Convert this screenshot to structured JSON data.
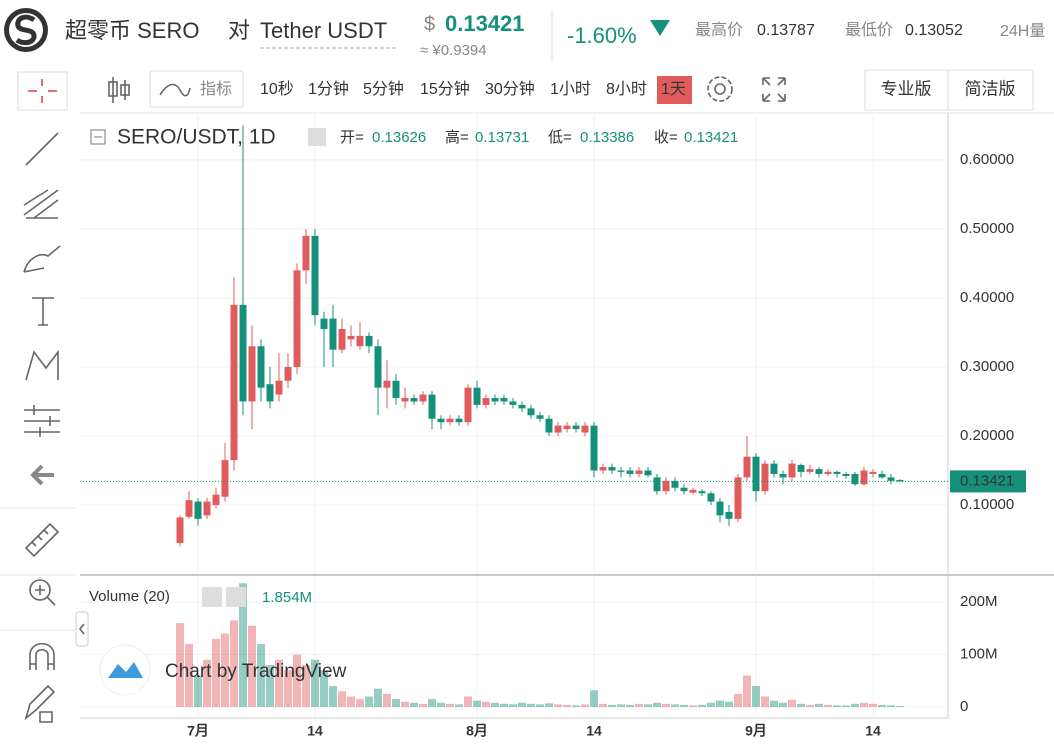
{
  "header": {
    "pair_name": "超零币 SERO",
    "vs": "对",
    "quote": "Tether USDT",
    "currency_symbol": "$",
    "price": "0.13421",
    "cny_price": "≈ ¥0.9394",
    "change": "-1.60%",
    "high_label": "最高价",
    "high": "0.13787",
    "low_label": "最低价",
    "low": "0.13052",
    "volume_label": "24H量"
  },
  "toolbar": {
    "indicators": "指标",
    "intervals": [
      "10秒",
      "1分钟",
      "5分钟",
      "15分钟",
      "30分钟",
      "1小时",
      "8小时",
      "1天"
    ],
    "versions": [
      "专业版",
      "简洁版"
    ]
  },
  "legend": {
    "symbol": "SERO/USDT, 1D",
    "open_label": "开=",
    "open": "0.13626",
    "high_label": "高=",
    "high": "0.13731",
    "low_label": "低=",
    "low": "0.13386",
    "close_label": "收=",
    "close": "0.13421"
  },
  "volume_legend": {
    "title": "Volume (20)",
    "value": "1.854M"
  },
  "watermark": "Chart by TradingView",
  "chart_data": {
    "type": "candlestick",
    "categories": [
      null,
      null,
      "7月",
      null,
      null,
      null,
      null,
      null,
      null,
      null,
      null,
      null,
      null,
      null,
      null,
      "14",
      null,
      null,
      null,
      null,
      null,
      null,
      null,
      null,
      null,
      null,
      null,
      null,
      null,
      null,
      null,
      null,
      null,
      "8月",
      null,
      null,
      null,
      null,
      null,
      null,
      null,
      null,
      null,
      null,
      null,
      null,
      "14",
      null,
      null,
      null,
      null,
      null,
      null,
      null,
      null,
      null,
      null,
      null,
      null,
      null,
      null,
      null,
      null,
      null,
      "9月",
      null,
      null,
      null,
      null,
      null,
      null,
      null,
      null,
      null,
      null,
      null,
      null,
      "14",
      null,
      null,
      null
    ],
    "open": [
      0.045,
      0.083,
      0.105,
      0.085,
      0.1,
      0.112,
      0.165,
      0.39,
      0.25,
      0.33,
      0.275,
      0.26,
      0.28,
      0.3,
      0.44,
      0.49,
      0.37,
      0.37,
      0.325,
      0.34,
      0.33,
      0.345,
      0.33,
      0.27,
      0.28,
      0.25,
      0.255,
      0.25,
      0.26,
      0.225,
      0.22,
      0.225,
      0.22,
      0.27,
      0.245,
      0.255,
      0.255,
      0.25,
      0.245,
      0.24,
      0.23,
      0.225,
      0.205,
      0.21,
      0.215,
      0.205,
      0.215,
      0.15,
      0.155,
      0.15,
      0.15,
      0.145,
      0.15,
      0.14,
      0.12,
      0.135,
      0.125,
      0.118,
      0.12,
      0.117,
      0.105,
      0.09,
      0.08,
      0.14,
      0.17,
      0.12,
      0.16,
      0.145,
      0.14,
      0.158,
      0.148,
      0.152,
      0.145,
      0.148,
      0.145,
      0.145,
      0.13,
      0.145,
      0.145,
      0.14,
      0.13626
    ],
    "high": [
      0.085,
      0.12,
      0.11,
      0.11,
      0.125,
      0.19,
      0.43,
      0.65,
      0.36,
      0.34,
      0.3,
      0.32,
      0.32,
      0.45,
      0.5,
      0.5,
      0.38,
      0.39,
      0.37,
      0.36,
      0.365,
      0.35,
      0.34,
      0.31,
      0.29,
      0.27,
      0.26,
      0.265,
      0.265,
      0.23,
      0.23,
      0.23,
      0.275,
      0.28,
      0.26,
      0.26,
      0.26,
      0.255,
      0.25,
      0.245,
      0.235,
      0.23,
      0.22,
      0.22,
      0.22,
      0.22,
      0.22,
      0.16,
      0.16,
      0.155,
      0.155,
      0.155,
      0.155,
      0.145,
      0.14,
      0.14,
      0.13,
      0.125,
      0.123,
      0.12,
      0.11,
      0.1,
      0.145,
      0.2,
      0.175,
      0.165,
      0.165,
      0.15,
      0.165,
      0.16,
      0.158,
      0.155,
      0.152,
      0.15,
      0.148,
      0.148,
      0.155,
      0.152,
      0.15,
      0.145,
      0.13731
    ],
    "low": [
      0.04,
      0.08,
      0.07,
      0.08,
      0.095,
      0.105,
      0.15,
      0.23,
      0.21,
      0.25,
      0.24,
      0.25,
      0.27,
      0.29,
      0.42,
      0.36,
      0.3,
      0.3,
      0.32,
      0.33,
      0.325,
      0.32,
      0.23,
      0.24,
      0.245,
      0.24,
      0.245,
      0.245,
      0.21,
      0.21,
      0.215,
      0.215,
      0.215,
      0.24,
      0.24,
      0.245,
      0.245,
      0.24,
      0.235,
      0.225,
      0.22,
      0.2,
      0.2,
      0.205,
      0.205,
      0.2,
      0.14,
      0.145,
      0.145,
      0.14,
      0.14,
      0.14,
      0.14,
      0.115,
      0.115,
      0.12,
      0.115,
      0.115,
      0.113,
      0.1,
      0.075,
      0.07,
      0.075,
      0.135,
      0.105,
      0.115,
      0.14,
      0.13,
      0.135,
      0.14,
      0.145,
      0.14,
      0.142,
      0.14,
      0.138,
      0.128,
      0.128,
      0.14,
      0.138,
      0.13,
      0.13386
    ],
    "close": [
      0.082,
      0.107,
      0.08,
      0.105,
      0.115,
      0.165,
      0.39,
      0.25,
      0.33,
      0.27,
      0.25,
      0.28,
      0.3,
      0.44,
      0.49,
      0.375,
      0.355,
      0.325,
      0.355,
      0.345,
      0.345,
      0.33,
      0.27,
      0.28,
      0.255,
      0.255,
      0.25,
      0.26,
      0.225,
      0.22,
      0.225,
      0.22,
      0.27,
      0.245,
      0.255,
      0.25,
      0.25,
      0.245,
      0.24,
      0.23,
      0.225,
      0.205,
      0.215,
      0.215,
      0.21,
      0.215,
      0.15,
      0.155,
      0.15,
      0.148,
      0.145,
      0.15,
      0.143,
      0.12,
      0.135,
      0.125,
      0.12,
      0.122,
      0.117,
      0.105,
      0.085,
      0.08,
      0.14,
      0.17,
      0.12,
      0.16,
      0.145,
      0.14,
      0.16,
      0.148,
      0.152,
      0.145,
      0.148,
      0.145,
      0.142,
      0.13,
      0.15,
      0.148,
      0.14,
      0.135,
      0.13421
    ],
    "volume": [
      160,
      120,
      60,
      90,
      130,
      140,
      165,
      236,
      155,
      120,
      80,
      90,
      70,
      100,
      80,
      90,
      70,
      40,
      30,
      20,
      15,
      20,
      35,
      25,
      15,
      10,
      8,
      6,
      15,
      8,
      6,
      5,
      20,
      12,
      10,
      8,
      6,
      5,
      8,
      6,
      5,
      7,
      5,
      4,
      3,
      5,
      32,
      6,
      4,
      5,
      4,
      6,
      5,
      8,
      6,
      5,
      4,
      3,
      4,
      8,
      12,
      10,
      25,
      60,
      40,
      20,
      12,
      8,
      14,
      6,
      4,
      6,
      4,
      3,
      3,
      6,
      8,
      6,
      4,
      3,
      1.854
    ],
    "up_color": "#e05c5c",
    "down_color": "#15907a",
    "ylim": [
      0.0015,
      0.665
    ],
    "yticks": [
      {
        "value": 0.1,
        "label": "0.10000"
      },
      {
        "value": 0.2,
        "label": "0.20000"
      },
      {
        "value": 0.3,
        "label": "0.30000"
      },
      {
        "value": 0.4,
        "label": "0.40000"
      },
      {
        "value": 0.5,
        "label": "0.50000"
      },
      {
        "value": 0.6,
        "label": "0.60000"
      }
    ],
    "volume_lim": [
      -21,
      246
    ],
    "volume_ticks": [
      0,
      {
        "value": 100,
        "label": "100M"
      },
      {
        "value": 200,
        "label": "200M"
      }
    ],
    "last_price": 0.13421,
    "grid": true
  }
}
